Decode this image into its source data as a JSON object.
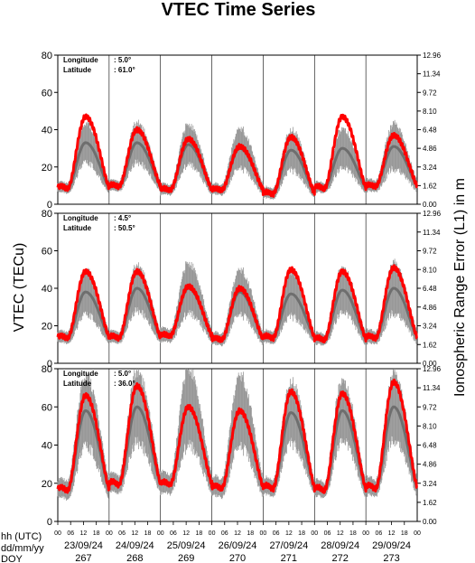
{
  "chart_data": {
    "type": "line",
    "title": "VTEC Time Series",
    "ylabel_left": "VTEC (TECu)",
    "ylabel_right": "Ionospheric Range Error (L1) in m",
    "footer_labels": [
      "hh (UTC)",
      "dd/mm/yy",
      "DOY"
    ],
    "hour_ticks": [
      "00",
      "06",
      "12",
      "18"
    ],
    "days": [
      {
        "date": "23/09/24",
        "doy": "267"
      },
      {
        "date": "24/09/24",
        "doy": "268"
      },
      {
        "date": "25/09/24",
        "doy": "269"
      },
      {
        "date": "26/09/24",
        "doy": "270"
      },
      {
        "date": "27/09/24",
        "doy": "271"
      },
      {
        "date": "28/09/24",
        "doy": "272"
      },
      {
        "date": "29/09/24",
        "doy": "273"
      }
    ],
    "ylim": [
      0,
      80
    ],
    "left_ticks": [
      "0",
      "20",
      "40",
      "60",
      "80"
    ],
    "right_ticks": [
      "0.00",
      "1.62",
      "3.24",
      "4.86",
      "6.48",
      "8.10",
      "9.72",
      "11.34",
      "12.96"
    ],
    "series_colors": {
      "observed": "#ff0000",
      "reference": "#666666"
    },
    "panels": [
      {
        "longitude_label": "Longitude",
        "longitude_value": ":   5.0°",
        "latitude_label": "Latitude",
        "latitude_value": ": 61.0°",
        "daily": [
          {
            "base": 9,
            "peak": 47,
            "ref_peak": 33,
            "spread": 8
          },
          {
            "base": 10,
            "peak": 40,
            "ref_peak": 33,
            "spread": 8
          },
          {
            "base": 8,
            "peak": 35,
            "ref_peak": 32,
            "spread": 8
          },
          {
            "base": 8,
            "peak": 31,
            "ref_peak": 30,
            "spread": 8
          },
          {
            "base": 6,
            "peak": 36,
            "ref_peak": 29,
            "spread": 8
          },
          {
            "base": 9,
            "peak": 47,
            "ref_peak": 30,
            "spread": 8
          },
          {
            "base": 10,
            "peak": 37,
            "ref_peak": 31,
            "spread": 9
          }
        ]
      },
      {
        "longitude_label": "Longitude",
        "longitude_value": ":   4.5°",
        "latitude_label": "Latitude",
        "latitude_value": ": 50.5°",
        "daily": [
          {
            "base": 14,
            "peak": 49,
            "ref_peak": 38,
            "spread": 9
          },
          {
            "base": 14,
            "peak": 49,
            "ref_peak": 40,
            "spread": 9
          },
          {
            "base": 15,
            "peak": 41,
            "ref_peak": 40,
            "spread": 10
          },
          {
            "base": 13,
            "peak": 40,
            "ref_peak": 38,
            "spread": 9
          },
          {
            "base": 14,
            "peak": 50,
            "ref_peak": 37,
            "spread": 9
          },
          {
            "base": 13,
            "peak": 49,
            "ref_peak": 39,
            "spread": 9
          },
          {
            "base": 14,
            "peak": 51,
            "ref_peak": 40,
            "spread": 10
          }
        ]
      },
      {
        "longitude_label": "Longitude",
        "longitude_value": ":   5.0°",
        "latitude_label": "Latitude",
        "latitude_value": ": 36.0°",
        "daily": [
          {
            "base": 17,
            "peak": 66,
            "ref_peak": 58,
            "spread": 14
          },
          {
            "base": 20,
            "peak": 71,
            "ref_peak": 60,
            "spread": 14
          },
          {
            "base": 20,
            "peak": 60,
            "ref_peak": 60,
            "spread": 15
          },
          {
            "base": 18,
            "peak": 58,
            "ref_peak": 58,
            "spread": 14
          },
          {
            "base": 18,
            "peak": 68,
            "ref_peak": 57,
            "spread": 12
          },
          {
            "base": 17,
            "peak": 67,
            "ref_peak": 58,
            "spread": 12
          },
          {
            "base": 18,
            "peak": 73,
            "ref_peak": 60,
            "spread": 13
          }
        ]
      }
    ]
  }
}
